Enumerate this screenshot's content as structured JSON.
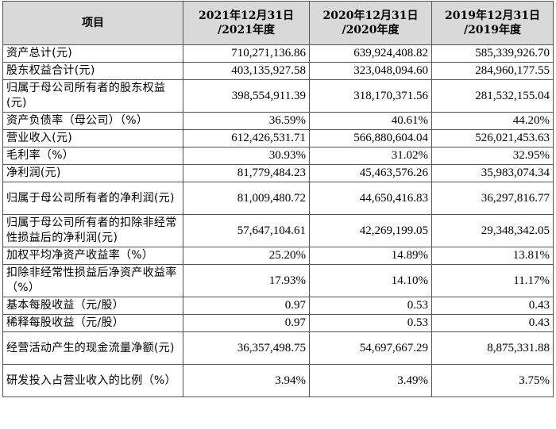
{
  "header": {
    "item": "项目",
    "col1_line1": "2021年12月31日",
    "col1_line2": "/2021年度",
    "col2_line1": "2020年12月31日",
    "col2_line2": "/2020年度",
    "col3_line1": "2019年12月31日",
    "col3_line2": "/2019年度"
  },
  "rows": [
    {
      "label": "资产总计(元)",
      "v2021": "710,271,136.86",
      "v2020": "639,924,408.82",
      "v2019": "585,339,926.70"
    },
    {
      "label": "股东权益合计(元)",
      "v2021": "403,135,927.58",
      "v2020": "323,048,094.60",
      "v2019": "284,960,177.55"
    },
    {
      "label": "归属于母公司所有者的股东权益(元)",
      "v2021": "398,554,911.39",
      "v2020": "318,170,371.56",
      "v2019": "281,532,155.04"
    },
    {
      "label": "资产负债率（母公司）（%）",
      "v2021": "36.59%",
      "v2020": "40.61%",
      "v2019": "44.20%"
    },
    {
      "label": "营业收入(元)",
      "v2021": "612,426,531.71",
      "v2020": "566,880,604.04",
      "v2019": "526,021,453.63"
    },
    {
      "label": "毛利率（%）",
      "v2021": "30.93%",
      "v2020": "31.02%",
      "v2019": "32.95%"
    },
    {
      "label": "净利润(元)",
      "v2021": "81,779,484.23",
      "v2020": "45,463,576.26",
      "v2019": "35,983,074.34"
    },
    {
      "label": "归属于母公司所有者的净利润(元)",
      "v2021": "81,009,480.72",
      "v2020": "44,650,416.83",
      "v2019": "36,297,816.77"
    },
    {
      "label": "归属于母公司所有者的扣除非经常性损益后的净利润(元)",
      "v2021": "57,647,104.61",
      "v2020": "42,269,199.05",
      "v2019": "29,348,342.05"
    },
    {
      "label": "加权平均净资产收益率（%）",
      "v2021": "25.20%",
      "v2020": "14.89%",
      "v2019": "13.81%"
    },
    {
      "label": "扣除非经常性损益后净资产收益率（%）",
      "v2021": "17.93%",
      "v2020": "14.10%",
      "v2019": "11.17%"
    },
    {
      "label": "基本每股收益（元/股）",
      "v2021": "0.97",
      "v2020": "0.53",
      "v2019": "0.43"
    },
    {
      "label": "稀释每股收益（元/股）",
      "v2021": "0.97",
      "v2020": "0.53",
      "v2019": "0.43"
    },
    {
      "label": "经营活动产生的现金流量净额(元)",
      "v2021": "36,357,498.75",
      "v2020": "54,697,667.29",
      "v2019": "8,875,331.88"
    },
    {
      "label": "研发投入占营业收入的比例（%）",
      "v2021": "3.94%",
      "v2020": "3.49%",
      "v2019": "3.75%"
    }
  ]
}
